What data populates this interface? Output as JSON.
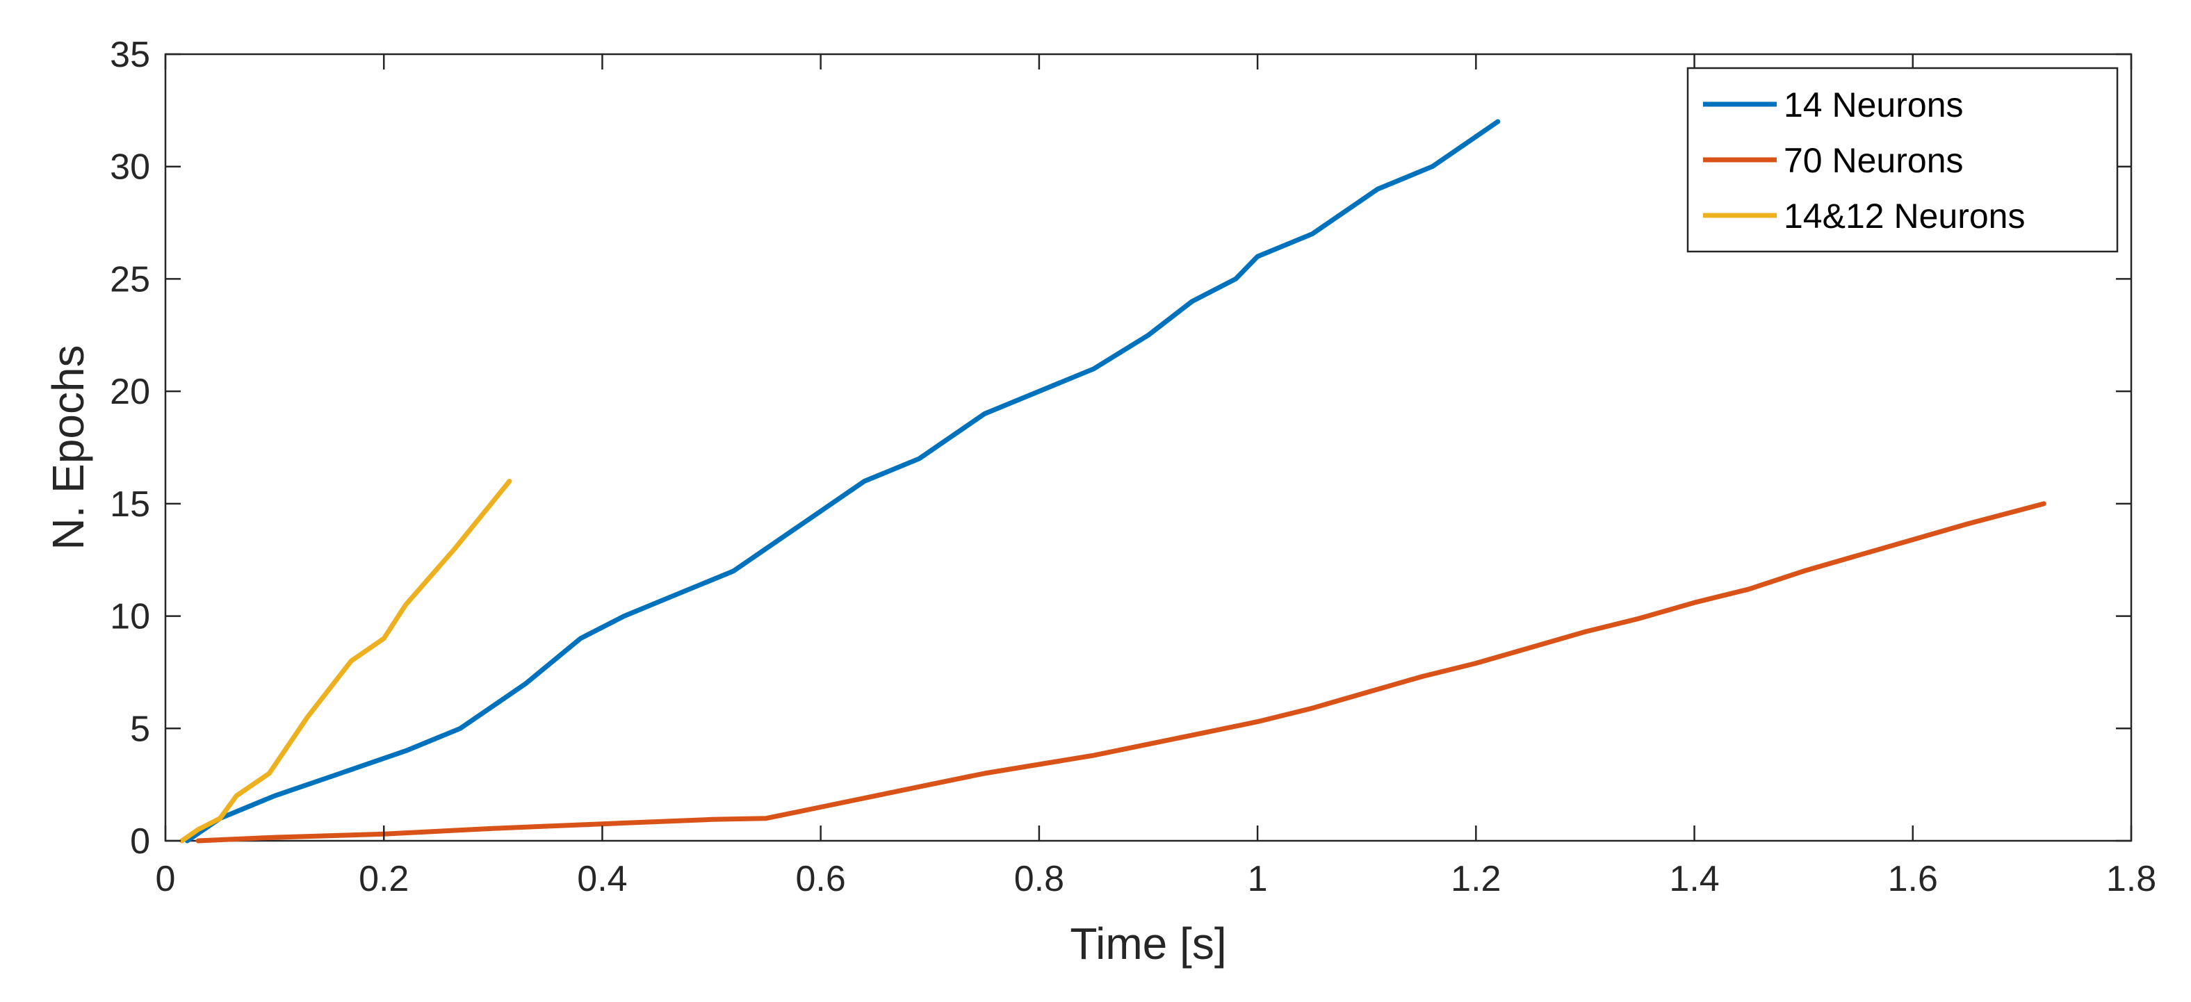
{
  "chart_data": {
    "type": "line",
    "title": "",
    "xlabel": "Time [s]",
    "ylabel": "N. Epochs",
    "xlim": [
      0,
      1.8
    ],
    "ylim": [
      0,
      35
    ],
    "xticks": [
      0,
      0.2,
      0.4,
      0.6,
      0.8,
      1,
      1.2,
      1.4,
      1.6,
      1.8
    ],
    "xtick_labels": [
      "0",
      "0.2",
      "0.4",
      "0.6",
      "0.8",
      "1",
      "1.2",
      "1.4",
      "1.6",
      "1.8"
    ],
    "yticks": [
      0,
      5,
      10,
      15,
      20,
      25,
      30,
      35
    ],
    "ytick_labels": [
      "0",
      "5",
      "10",
      "15",
      "20",
      "25",
      "30",
      "35"
    ],
    "grid": false,
    "legend_position": "top-right",
    "series": [
      {
        "name": "14 Neurons",
        "color": "#0072BD",
        "x": [
          0.02,
          0.05,
          0.1,
          0.16,
          0.22,
          0.27,
          0.33,
          0.38,
          0.42,
          0.47,
          0.52,
          0.58,
          0.64,
          0.69,
          0.75,
          0.8,
          0.85,
          0.9,
          0.94,
          0.98,
          1.0,
          1.05,
          1.11,
          1.16,
          1.22
        ],
        "y": [
          0,
          1,
          2,
          3,
          4,
          5,
          7,
          9,
          10,
          11,
          12,
          14,
          16,
          17,
          19,
          20,
          21,
          22.5,
          24,
          25,
          26,
          27,
          29,
          30,
          32
        ]
      },
      {
        "name": "70 Neurons",
        "color": "#D95319",
        "x": [
          0.03,
          0.1,
          0.2,
          0.3,
          0.4,
          0.5,
          0.55,
          0.6,
          0.65,
          0.7,
          0.75,
          0.8,
          0.85,
          0.9,
          0.95,
          1.0,
          1.05,
          1.1,
          1.15,
          1.2,
          1.25,
          1.3,
          1.35,
          1.4,
          1.45,
          1.5,
          1.55,
          1.6,
          1.65,
          1.72
        ],
        "y": [
          0,
          0.15,
          0.3,
          0.55,
          0.75,
          0.95,
          1.0,
          1.5,
          2.0,
          2.5,
          3.0,
          3.4,
          3.8,
          4.3,
          4.8,
          5.3,
          5.9,
          6.6,
          7.3,
          7.9,
          8.6,
          9.3,
          9.9,
          10.6,
          11.2,
          12.0,
          12.7,
          13.4,
          14.1,
          15.0
        ]
      },
      {
        "name": "14&12 Neurons",
        "color": "#EDB120",
        "x": [
          0.015,
          0.03,
          0.05,
          0.065,
          0.095,
          0.13,
          0.17,
          0.2,
          0.22,
          0.265,
          0.315
        ],
        "y": [
          0,
          0.5,
          1,
          2,
          3,
          5.5,
          8,
          9,
          10.5,
          13,
          16
        ]
      }
    ]
  }
}
